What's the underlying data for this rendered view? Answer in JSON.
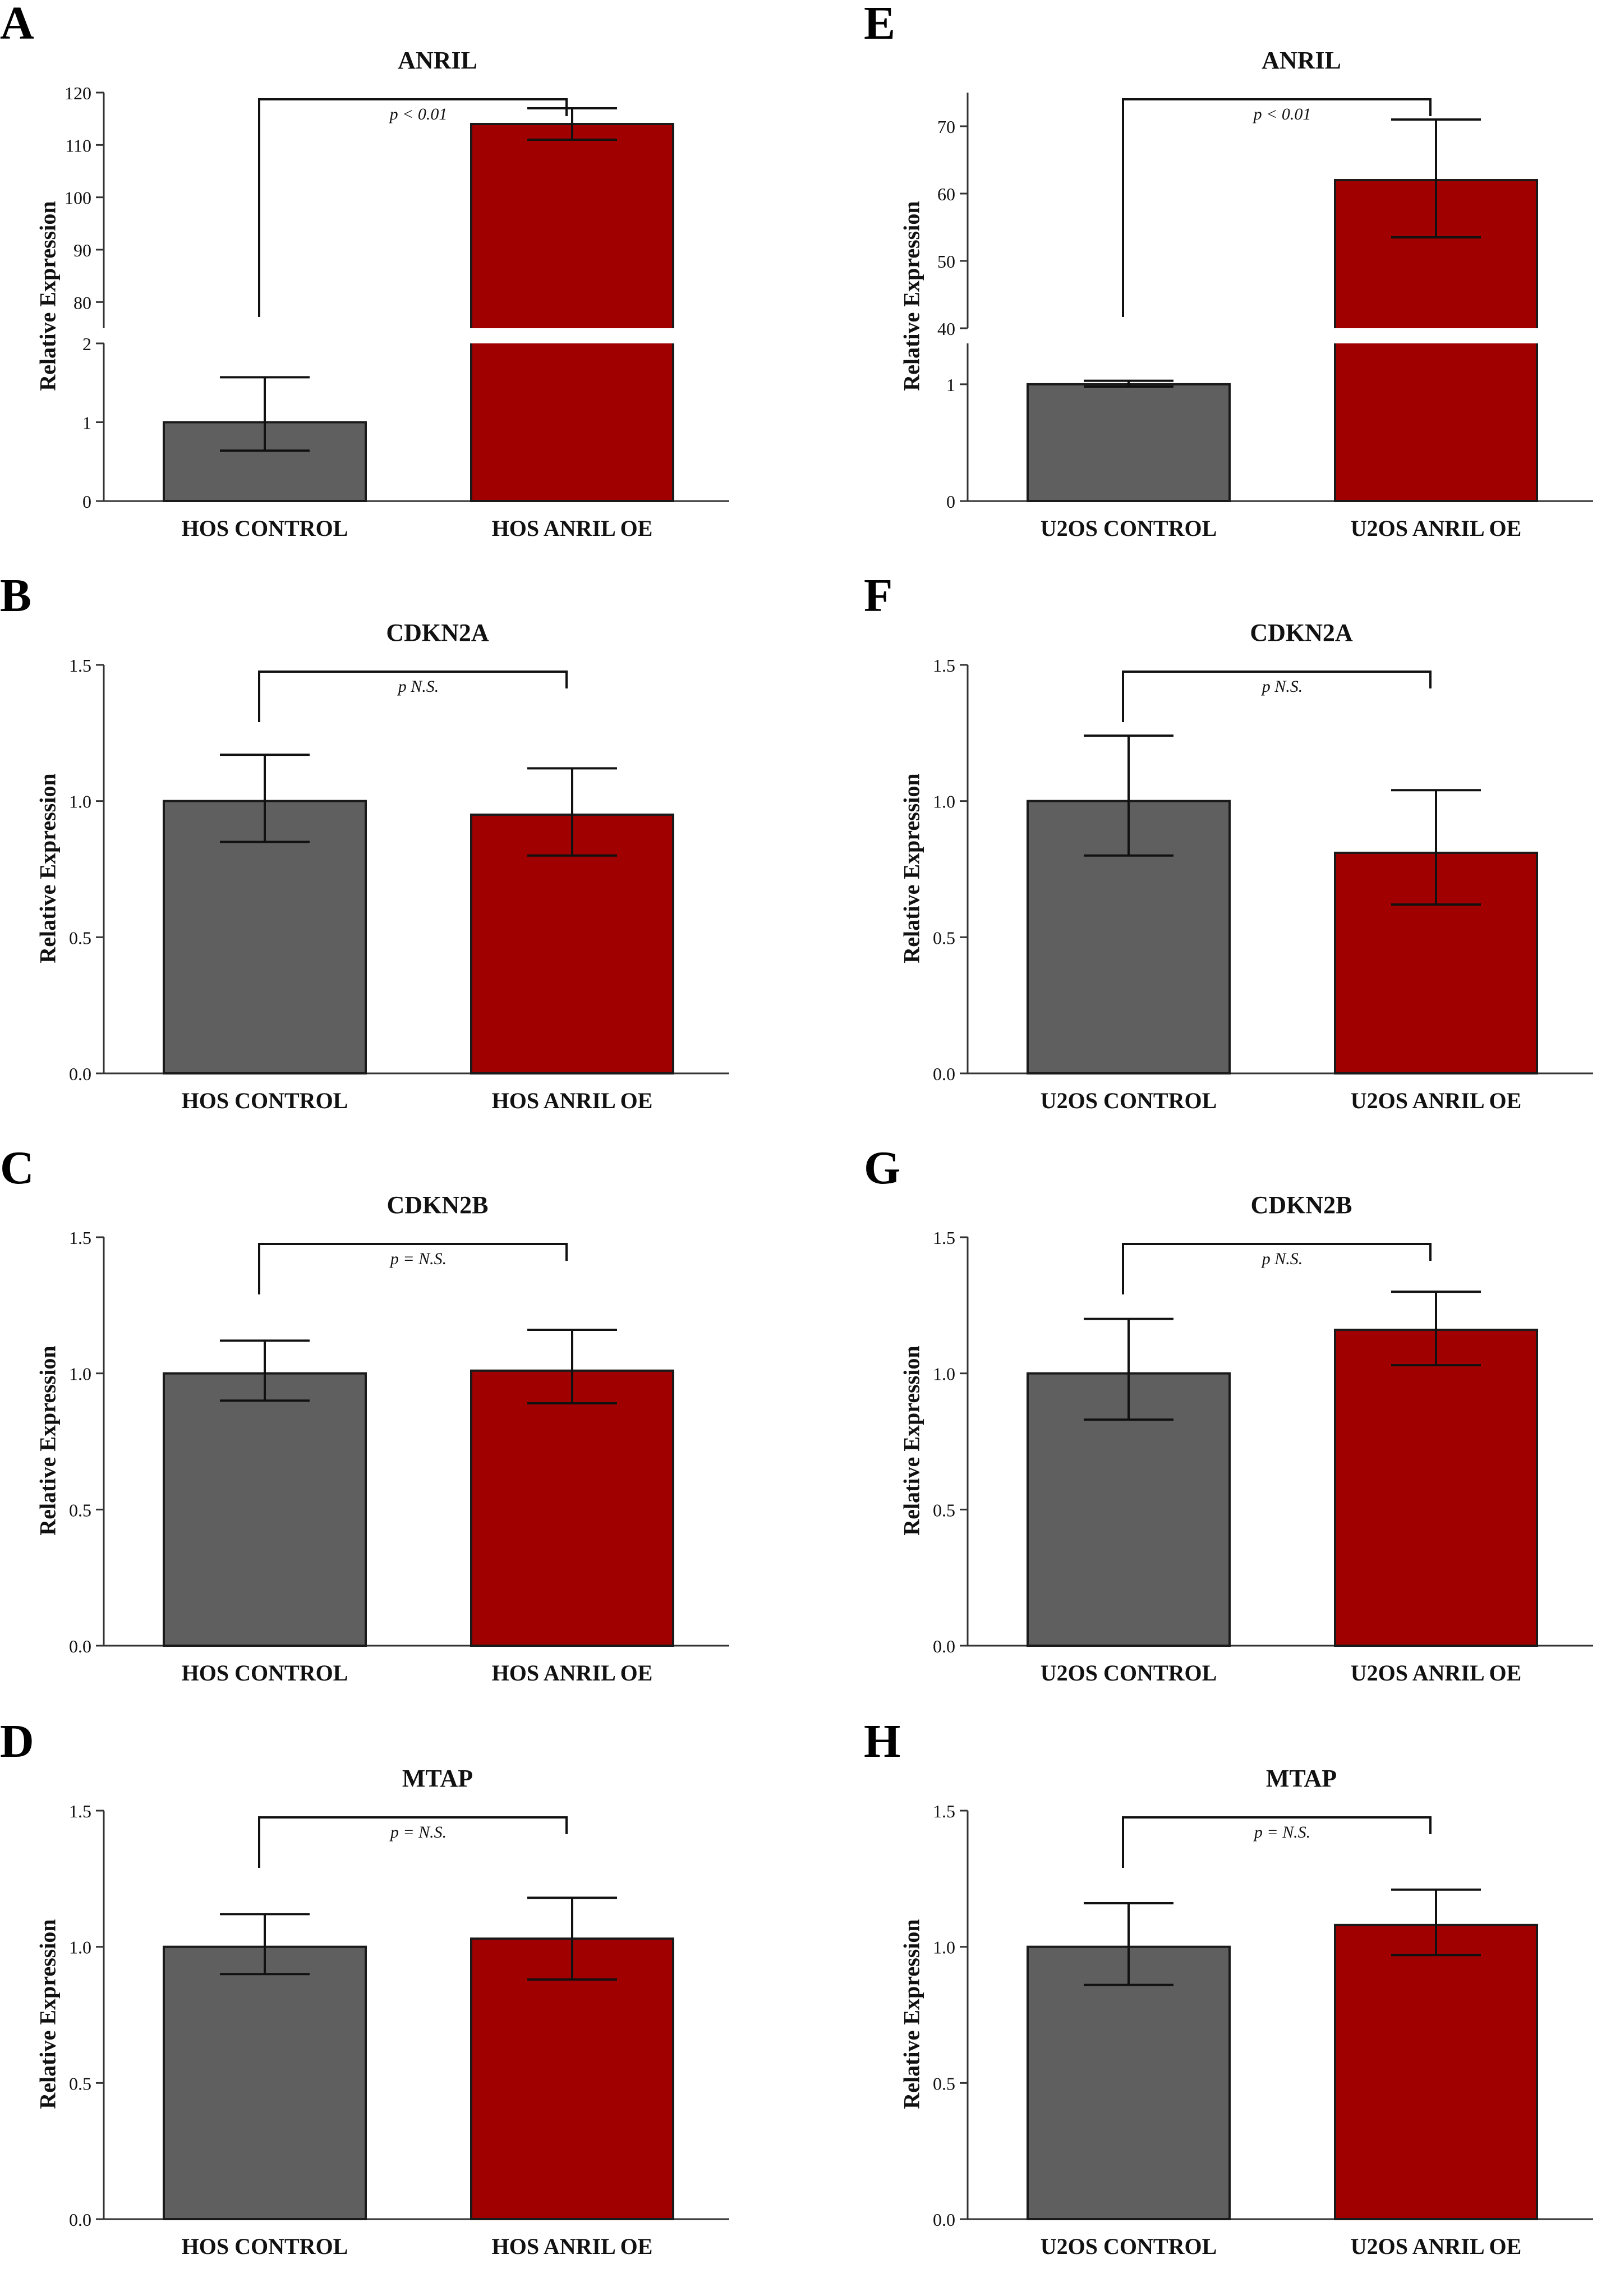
{
  "colors": {
    "control": "#5f5f5f",
    "anril_oe": "#a00000"
  },
  "y_axis_label": "Relative Expression",
  "chart_data": [
    {
      "id": "A",
      "type": "bar",
      "title": "ANRIL",
      "ylabel": "Relative Expression",
      "categories": [
        "HOS CONTROL",
        "HOS ANRIL OE"
      ],
      "values": [
        1.0,
        114
      ],
      "error": [
        [
          0.64,
          1.57
        ],
        [
          111,
          117
        ]
      ],
      "broken_axis": true,
      "y_segments": [
        {
          "range": [
            0,
            2
          ],
          "ticks": [
            0,
            1,
            2
          ]
        },
        {
          "range": [
            75,
            120
          ],
          "ticks": [
            80,
            90,
            100,
            110,
            120
          ]
        }
      ],
      "annotation": "p < 0.01"
    },
    {
      "id": "B",
      "type": "bar",
      "title": "CDKN2A",
      "ylabel": "Relative Expression",
      "categories": [
        "HOS CONTROL",
        "HOS ANRIL OE"
      ],
      "values": [
        1.0,
        0.95
      ],
      "error": [
        [
          0.85,
          1.17
        ],
        [
          0.8,
          1.12
        ]
      ],
      "ylim": [
        0,
        1.5
      ],
      "yticks": [
        "0.0",
        "0.5",
        "1.0",
        "1.5"
      ],
      "annotation": "p   N.S."
    },
    {
      "id": "C",
      "type": "bar",
      "title": "CDKN2B",
      "ylabel": "Relative Expression",
      "categories": [
        "HOS CONTROL",
        "HOS ANRIL OE"
      ],
      "values": [
        1.0,
        1.01
      ],
      "error": [
        [
          0.9,
          1.12
        ],
        [
          0.89,
          1.16
        ]
      ],
      "ylim": [
        0,
        1.5
      ],
      "yticks": [
        "0.0",
        "0.5",
        "1.0",
        "1.5"
      ],
      "annotation": "p = N.S."
    },
    {
      "id": "D",
      "type": "bar",
      "title": "MTAP",
      "ylabel": "Relative Expression",
      "categories": [
        "HOS CONTROL",
        "HOS ANRIL OE"
      ],
      "values": [
        1.0,
        1.03
      ],
      "error": [
        [
          0.9,
          1.12
        ],
        [
          0.88,
          1.18
        ]
      ],
      "ylim": [
        0,
        1.5
      ],
      "yticks": [
        "0.0",
        "0.5",
        "1.0",
        "1.5"
      ],
      "annotation": "p = N.S."
    },
    {
      "id": "E",
      "type": "bar",
      "title": "ANRIL",
      "ylabel": "Relative Expression",
      "categories": [
        "U2OS CONTROL",
        "U2OS ANRIL OE"
      ],
      "values": [
        1.0,
        62
      ],
      "error": [
        [
          0.98,
          1.03
        ],
        [
          53.5,
          71
        ]
      ],
      "broken_axis": true,
      "y_segments": [
        {
          "range": [
            0,
            1.35
          ],
          "ticks": [
            0,
            1
          ]
        },
        {
          "range": [
            40,
            75
          ],
          "ticks": [
            40,
            50,
            60,
            70
          ]
        }
      ],
      "annotation": "p < 0.01"
    },
    {
      "id": "F",
      "type": "bar",
      "title": "CDKN2A",
      "ylabel": "Relative Expression",
      "categories": [
        "U2OS CONTROL",
        "U2OS ANRIL OE"
      ],
      "values": [
        1.0,
        0.81
      ],
      "error": [
        [
          0.8,
          1.24
        ],
        [
          0.62,
          1.04
        ]
      ],
      "ylim": [
        0,
        1.5
      ],
      "yticks": [
        "0.0",
        "0.5",
        "1.0",
        "1.5"
      ],
      "annotation": "p   N.S."
    },
    {
      "id": "G",
      "type": "bar",
      "title": "CDKN2B",
      "ylabel": "Relative Expression",
      "categories": [
        "U2OS CONTROL",
        "U2OS ANRIL OE"
      ],
      "values": [
        1.0,
        1.16
      ],
      "error": [
        [
          0.83,
          1.2
        ],
        [
          1.03,
          1.3
        ]
      ],
      "ylim": [
        0,
        1.5
      ],
      "yticks": [
        "0.0",
        "0.5",
        "1.0",
        "1.5"
      ],
      "annotation": "p   N.S."
    },
    {
      "id": "H",
      "type": "bar",
      "title": "MTAP",
      "ylabel": "Relative Expression",
      "categories": [
        "U2OS CONTROL",
        "U2OS ANRIL OE"
      ],
      "values": [
        1.0,
        1.08
      ],
      "error": [
        [
          0.86,
          1.16
        ],
        [
          0.97,
          1.21
        ]
      ],
      "ylim": [
        0,
        1.5
      ],
      "yticks": [
        "0.0",
        "0.5",
        "1.0",
        "1.5"
      ],
      "annotation": "p = N.S."
    }
  ]
}
